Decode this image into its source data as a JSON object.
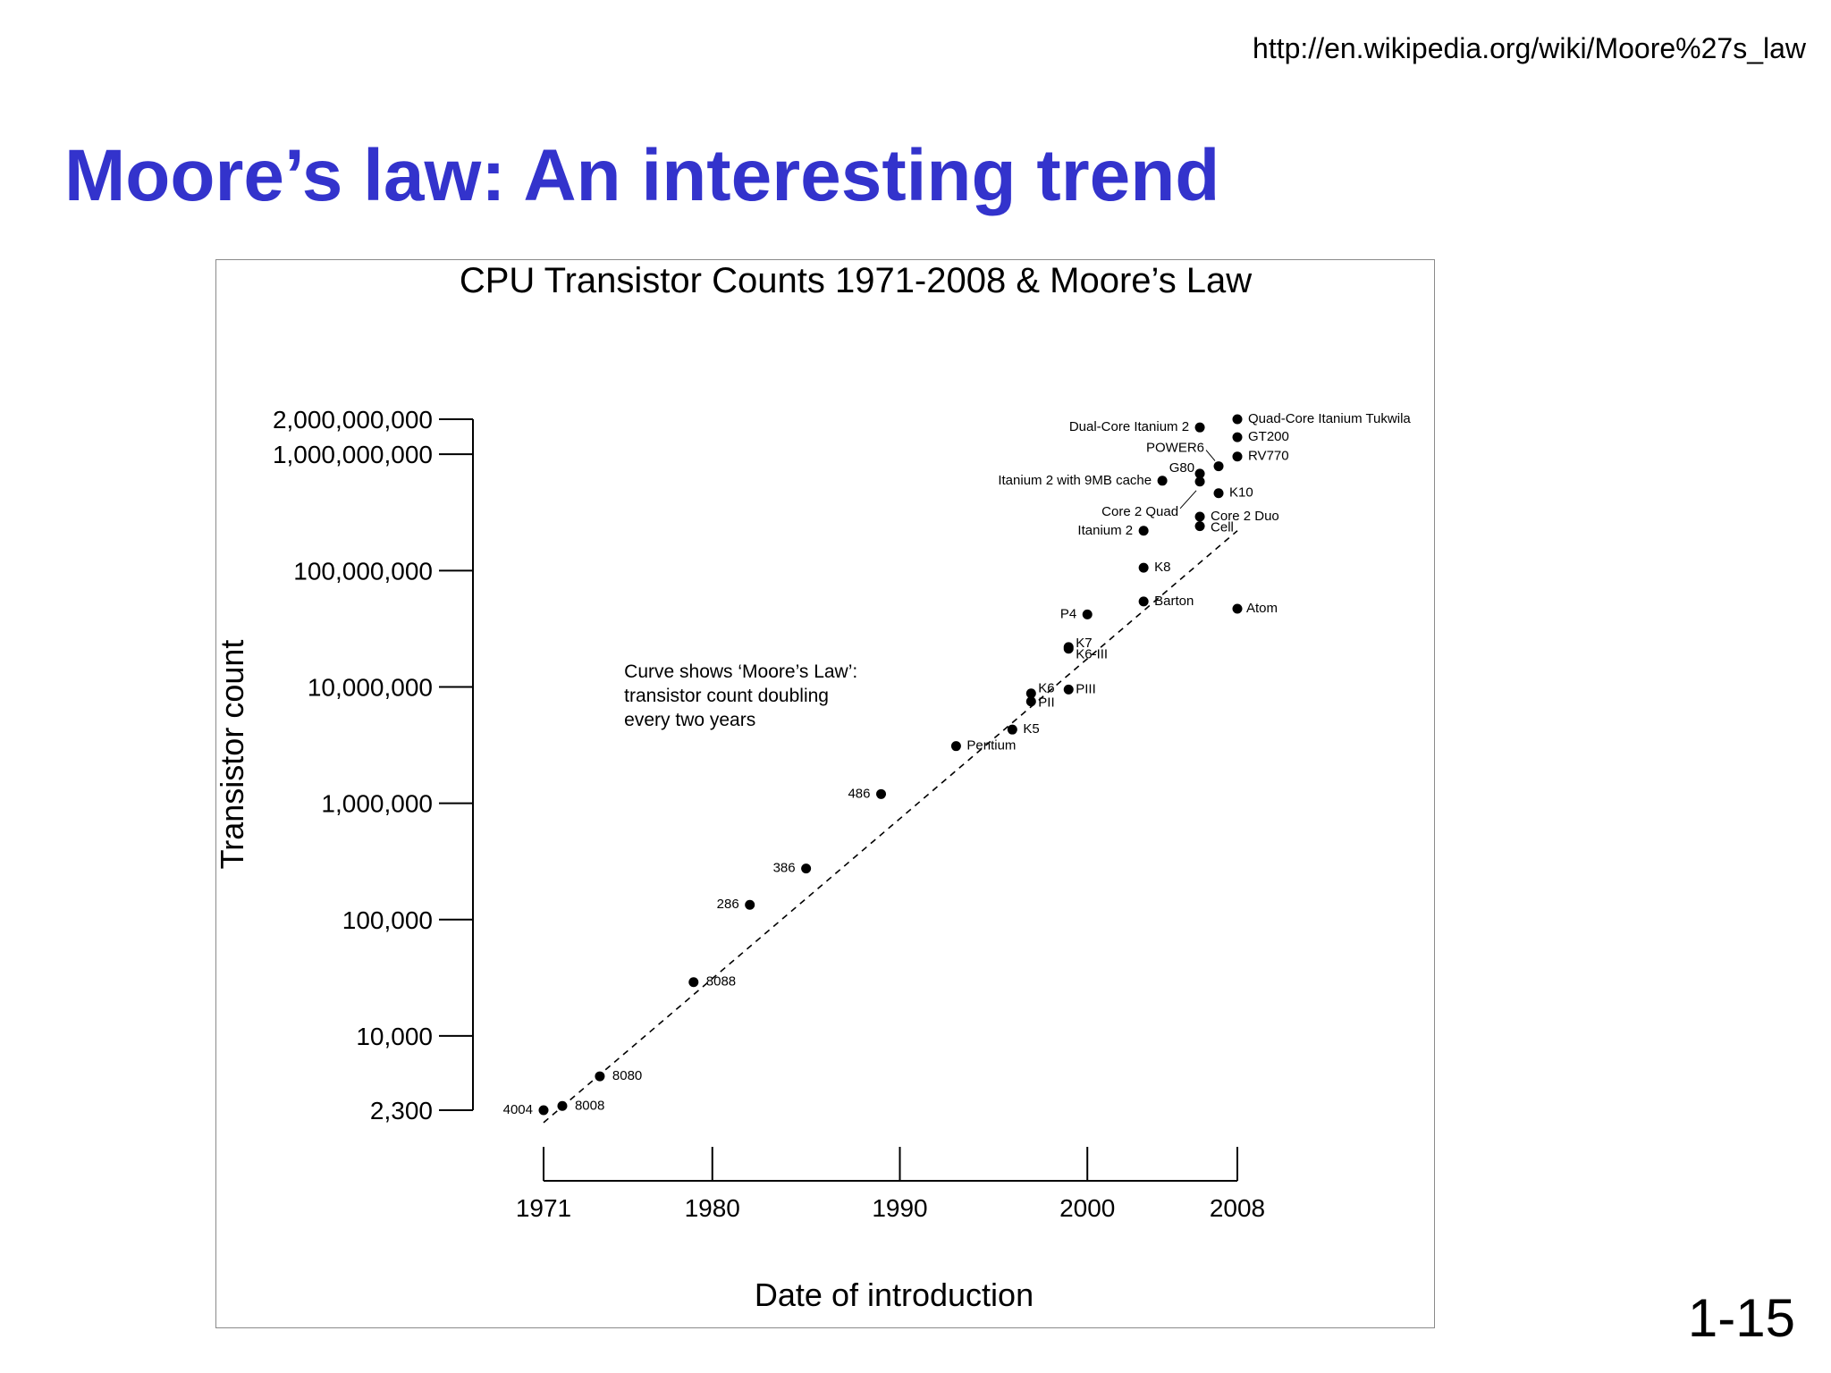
{
  "slide": {
    "url": "http://en.wikipedia.org/wiki/Moore%27s_law",
    "title": "Moore’s law: An interesting trend",
    "page_number": "1-15"
  },
  "chart_data": {
    "type": "scatter",
    "title": "CPU Transistor Counts 1971-2008 & Moore’s Law",
    "xlabel": "Date of introduction",
    "ylabel": "Transistor count",
    "x_scale": "linear",
    "y_scale": "log",
    "xlim": [
      1971,
      2008
    ],
    "ylim": [
      2300,
      2000000000
    ],
    "x_ticks": [
      1971,
      1980,
      1990,
      2000,
      2008
    ],
    "x_tick_labels": [
      "1971",
      "1980",
      "1990",
      "2000",
      "2008"
    ],
    "y_ticks": [
      2300,
      10000,
      100000,
      1000000,
      10000000,
      100000000,
      1000000000,
      2000000000
    ],
    "y_tick_labels": [
      "2,300",
      "10,000",
      "100,000",
      "1,000,000",
      "10,000,000",
      "100,000,000",
      "1,000,000,000",
      "2,000,000,000"
    ],
    "grid": false,
    "legend": "none",
    "annotation": {
      "lines": [
        "Curve shows ‘Moore’s Law’:",
        "transistor count doubling",
        "every two years"
      ],
      "x": 1975.3,
      "y": 12000000
    },
    "trend_line": {
      "description": "Moore's Law, doubling every two years",
      "start": [
        1971,
        1800
      ],
      "end": [
        2008,
        220000000
      ]
    },
    "points": [
      {
        "label": "4004",
        "x": 1971,
        "y": 2300,
        "label_side": "left"
      },
      {
        "label": "8008",
        "x": 1972,
        "y": 2500,
        "label_side": "right"
      },
      {
        "label": "8080",
        "x": 1974,
        "y": 4500,
        "label_side": "right"
      },
      {
        "label": "8088",
        "x": 1979,
        "y": 29000,
        "label_side": "right"
      },
      {
        "label": "286",
        "x": 1982,
        "y": 134000,
        "label_side": "left"
      },
      {
        "label": "386",
        "x": 1985,
        "y": 275000,
        "label_side": "left"
      },
      {
        "label": "486",
        "x": 1989,
        "y": 1200000,
        "label_side": "left"
      },
      {
        "label": "Pentium",
        "x": 1993,
        "y": 3100000,
        "label_side": "right"
      },
      {
        "label": "K5",
        "x": 1996,
        "y": 4300000,
        "label_side": "right"
      },
      {
        "label": "K6",
        "x": 1997,
        "y": 8800000,
        "label_side": "right"
      },
      {
        "label": "PII",
        "x": 1997,
        "y": 7500000,
        "label_side": "right"
      },
      {
        "label": "PIII",
        "x": 1999,
        "y": 9500000,
        "label_side": "right"
      },
      {
        "label": "K6-III",
        "x": 1999,
        "y": 21300000,
        "label_side": "right"
      },
      {
        "label": "K7",
        "x": 1999,
        "y": 22000000,
        "label_side": "right"
      },
      {
        "label": "P4",
        "x": 2000,
        "y": 42000000,
        "label_side": "left"
      },
      {
        "label": "Barton",
        "x": 2003,
        "y": 54300000,
        "label_side": "right"
      },
      {
        "label": "K8",
        "x": 2003,
        "y": 105900000,
        "label_side": "right"
      },
      {
        "label": "Itanium 2",
        "x": 2003,
        "y": 220000000,
        "label_side": "left"
      },
      {
        "label": "Cell",
        "x": 2006,
        "y": 241000000,
        "label_side": "right"
      },
      {
        "label": "Core 2 Duo",
        "x": 2006,
        "y": 291000000,
        "label_side": "right"
      },
      {
        "label": "Core 2 Quad",
        "x": 2006,
        "y": 582000000,
        "label_side": "left"
      },
      {
        "label": "G80",
        "x": 2006,
        "y": 681000000,
        "label_side": "left"
      },
      {
        "label": "Itanium 2 with 9MB cache",
        "x": 2004,
        "y": 592000000,
        "label_side": "left"
      },
      {
        "label": "POWER6",
        "x": 2007,
        "y": 789000000,
        "label_side": "left"
      },
      {
        "label": "K10",
        "x": 2007,
        "y": 463000000,
        "label_side": "right"
      },
      {
        "label": "Dual-Core Itanium 2",
        "x": 2006,
        "y": 1700000000,
        "label_side": "left"
      },
      {
        "label": "Quad-Core Itanium Tukwila",
        "x": 2008,
        "y": 2000000000,
        "label_side": "right"
      },
      {
        "label": "GT200",
        "x": 2008,
        "y": 1400000000,
        "label_side": "right"
      },
      {
        "label": "RV770",
        "x": 2008,
        "y": 956000000,
        "label_side": "right"
      },
      {
        "label": "Atom",
        "x": 2008,
        "y": 47000000,
        "label_side": "right"
      }
    ]
  }
}
